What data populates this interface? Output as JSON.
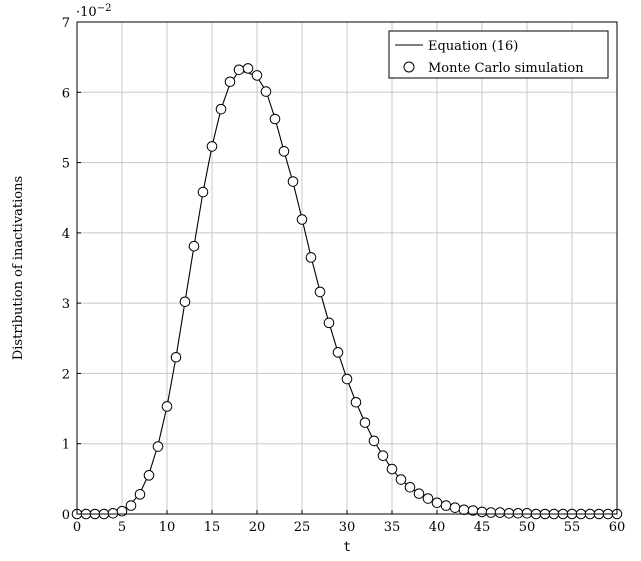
{
  "chart_data": {
    "type": "line",
    "xlabel": "t",
    "ylabel": "Distribution of inactivations",
    "y_multiplier": "·10",
    "y_multiplier_exp": "−2",
    "xlim": [
      0,
      60
    ],
    "ylim": [
      0,
      7
    ],
    "x_ticks": [
      0,
      5,
      10,
      15,
      20,
      25,
      30,
      35,
      40,
      45,
      50,
      55,
      60
    ],
    "y_ticks": [
      0,
      1,
      2,
      3,
      4,
      5,
      6,
      7
    ],
    "grid": true,
    "legend_position": "top-right",
    "series": [
      {
        "name": "Equation (16)",
        "style": "line",
        "x": [
          0,
          1,
          2,
          3,
          4,
          5,
          6,
          7,
          8,
          9,
          10,
          11,
          12,
          13,
          14,
          15,
          16,
          17,
          18,
          19,
          20,
          21,
          22,
          23,
          24,
          25,
          26,
          27,
          28,
          29,
          30,
          31,
          32,
          33,
          34,
          35,
          36,
          37,
          38,
          39,
          40,
          41,
          42,
          43,
          44,
          45,
          46,
          47,
          48,
          49,
          50,
          51,
          52,
          53,
          54,
          55,
          56,
          57,
          58,
          59,
          60
        ],
        "y": [
          0,
          0,
          0,
          0,
          0.01,
          0.05,
          0.14,
          0.3,
          0.57,
          0.98,
          1.53,
          2.23,
          3.02,
          3.81,
          4.58,
          5.23,
          5.76,
          6.12,
          6.3,
          6.28,
          6.22,
          6.02,
          5.63,
          5.16,
          4.72,
          4.2,
          3.66,
          3.17,
          2.72,
          2.3,
          1.92,
          1.59,
          1.3,
          1.04,
          0.83,
          0.64,
          0.49,
          0.38,
          0.29,
          0.22,
          0.16,
          0.12,
          0.09,
          0.06,
          0.05,
          0.03,
          0.02,
          0.02,
          0.01,
          0.01,
          0.01,
          0,
          0,
          0,
          0,
          0,
          0,
          0,
          0,
          0,
          0
        ]
      },
      {
        "name": "Monte Carlo simulation",
        "style": "marker",
        "x": [
          0,
          1,
          2,
          3,
          4,
          5,
          6,
          7,
          8,
          9,
          10,
          11,
          12,
          13,
          14,
          15,
          16,
          17,
          18,
          19,
          20,
          21,
          22,
          23,
          24,
          25,
          26,
          27,
          28,
          29,
          30,
          31,
          32,
          33,
          34,
          35,
          36,
          37,
          38,
          39,
          40,
          41,
          42,
          43,
          44,
          45,
          46,
          47,
          48,
          49,
          50,
          51,
          52,
          53,
          54,
          55,
          56,
          57,
          58,
          59,
          60
        ],
        "y": [
          0,
          0,
          0,
          0,
          0.01,
          0.04,
          0.12,
          0.28,
          0.55,
          0.96,
          1.53,
          2.23,
          3.02,
          3.81,
          4.58,
          5.23,
          5.76,
          6.15,
          6.32,
          6.34,
          6.24,
          6.01,
          5.62,
          5.16,
          4.73,
          4.19,
          3.65,
          3.16,
          2.72,
          2.3,
          1.92,
          1.59,
          1.3,
          1.04,
          0.83,
          0.64,
          0.49,
          0.38,
          0.29,
          0.22,
          0.16,
          0.12,
          0.09,
          0.06,
          0.05,
          0.03,
          0.02,
          0.02,
          0.01,
          0.01,
          0.01,
          0,
          0,
          0,
          0,
          0,
          0,
          0,
          0,
          0,
          0
        ]
      }
    ]
  }
}
